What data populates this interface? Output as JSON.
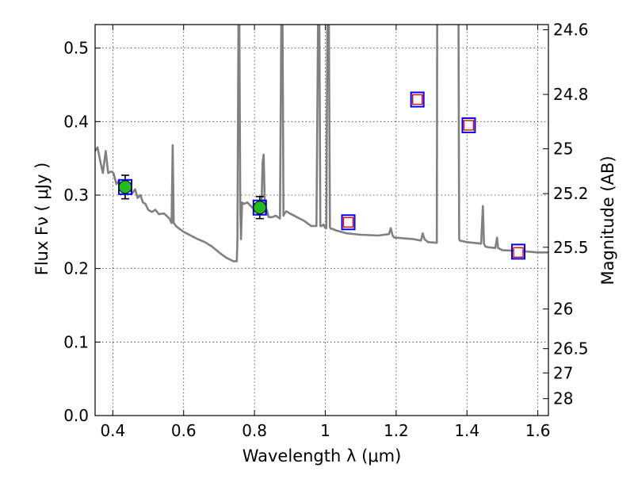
{
  "chart_data": {
    "type": "line",
    "xlabel": "Wavelength  λ (μm)",
    "ylabel": "Flux  Fν  ( μJy )",
    "y2label": "Magnitude (AB)",
    "xlim": [
      0.35,
      1.63
    ],
    "ylim": [
      0.0,
      0.532
    ],
    "x_ticks": [
      0.4,
      0.6,
      0.8,
      1.0,
      1.2,
      1.4,
      1.6
    ],
    "x_tick_labels": [
      "0.4",
      "0.6",
      "0.8",
      "1",
      "1.2",
      "1.4",
      "1.6"
    ],
    "y_ticks": [
      0.0,
      0.1,
      0.2,
      0.3,
      0.4,
      0.5
    ],
    "y_tick_labels": [
      "0.0",
      "0.1",
      "0.2",
      "0.3",
      "0.4",
      "0.5"
    ],
    "magnitude_ticks": [
      {
        "label": "24.6",
        "flux": 0.525
      },
      {
        "label": "24.8",
        "flux": 0.437
      },
      {
        "label": "25",
        "flux": 0.363
      },
      {
        "label": "25.2",
        "flux": 0.302
      },
      {
        "label": "25.5",
        "flux": 0.229
      },
      {
        "label": "26",
        "flux": 0.145
      },
      {
        "label": "26.5",
        "flux": 0.091
      },
      {
        "label": "27",
        "flux": 0.058
      },
      {
        "label": "28",
        "flux": 0.023
      }
    ],
    "grid": true,
    "colors": {
      "model": "#808080",
      "detection_fill": "#22bb22",
      "model_box": "#0000ee",
      "upper_limit_box": "#ee0000",
      "errorbar": "#000000"
    },
    "series": [
      {
        "type": "line",
        "role": "model spectrum",
        "x": [
          0.35,
          0.357,
          0.365,
          0.372,
          0.38,
          0.387,
          0.395,
          0.402,
          0.41,
          0.418,
          0.425,
          0.432,
          0.44,
          0.447,
          0.455,
          0.463,
          0.47,
          0.478,
          0.485,
          0.492,
          0.5,
          0.51,
          0.52,
          0.53,
          0.545,
          0.56,
          0.566,
          0.569,
          0.572,
          0.58,
          0.6,
          0.62,
          0.64,
          0.66,
          0.68,
          0.7,
          0.72,
          0.74,
          0.75,
          0.752,
          0.755,
          0.757,
          0.76,
          0.762,
          0.765,
          0.77,
          0.78,
          0.79,
          0.8,
          0.81,
          0.815,
          0.82,
          0.823,
          0.826,
          0.829,
          0.832,
          0.835,
          0.84,
          0.85,
          0.86,
          0.872,
          0.876,
          0.879,
          0.882,
          0.885,
          0.89,
          0.9,
          0.92,
          0.94,
          0.96,
          0.975,
          0.98,
          0.983,
          0.986,
          0.99,
          0.995,
          1.0,
          1.003,
          1.006,
          1.01,
          1.013,
          1.016,
          1.02,
          1.03,
          1.06,
          1.1,
          1.15,
          1.18,
          1.185,
          1.19,
          1.195,
          1.2,
          1.25,
          1.27,
          1.275,
          1.28,
          1.285,
          1.29,
          1.315,
          1.316,
          1.318,
          1.32,
          1.34,
          1.36,
          1.375,
          1.376,
          1.378,
          1.38,
          1.4,
          1.44,
          1.445,
          1.448,
          1.452,
          1.46,
          1.48,
          1.485,
          1.488,
          1.492,
          1.5,
          1.55,
          1.6,
          1.63
        ],
        "y": [
          0.36,
          0.365,
          0.345,
          0.33,
          0.36,
          0.33,
          0.332,
          0.33,
          0.315,
          0.32,
          0.305,
          0.318,
          0.31,
          0.31,
          0.302,
          0.308,
          0.296,
          0.3,
          0.29,
          0.288,
          0.28,
          0.277,
          0.28,
          0.274,
          0.275,
          0.268,
          0.262,
          0.368,
          0.262,
          0.257,
          0.25,
          0.245,
          0.24,
          0.236,
          0.23,
          0.222,
          0.215,
          0.21,
          0.21,
          0.24,
          0.56,
          0.56,
          0.28,
          0.24,
          0.29,
          0.288,
          0.29,
          0.285,
          0.28,
          0.285,
          0.29,
          0.285,
          0.345,
          0.355,
          0.29,
          0.275,
          0.28,
          0.27,
          0.27,
          0.272,
          0.268,
          0.56,
          0.56,
          0.272,
          0.275,
          0.278,
          0.275,
          0.27,
          0.265,
          0.258,
          0.258,
          0.56,
          0.56,
          0.258,
          0.258,
          0.26,
          0.255,
          0.255,
          0.56,
          0.56,
          0.256,
          0.254,
          0.254,
          0.252,
          0.248,
          0.246,
          0.245,
          0.247,
          0.255,
          0.245,
          0.242,
          0.242,
          0.24,
          0.238,
          0.248,
          0.24,
          0.238,
          0.236,
          0.235,
          0.56,
          0.56,
          0.56,
          0.56,
          0.56,
          0.56,
          0.56,
          0.24,
          0.238,
          0.236,
          0.234,
          0.285,
          0.234,
          0.23,
          0.229,
          0.228,
          0.242,
          0.228,
          0.227,
          0.225,
          0.224,
          0.222,
          0.222
        ]
      },
      {
        "type": "scatter",
        "role": "detections",
        "marker": "circle",
        "x": [
          0.435,
          0.815
        ],
        "y": [
          0.311,
          0.283
        ],
        "yerr": [
          0.016,
          0.015
        ]
      },
      {
        "type": "scatter",
        "role": "model band flux",
        "marker": "square",
        "x": [
          0.435,
          0.815,
          1.065,
          1.26,
          1.405,
          1.545
        ],
        "y": [
          0.311,
          0.283,
          0.263,
          0.43,
          0.395,
          0.223
        ]
      },
      {
        "type": "scatter",
        "role": "upper limits",
        "marker": "square",
        "x": [
          1.065,
          1.26,
          1.405,
          1.545
        ],
        "y": [
          0.263,
          0.43,
          0.395,
          0.222
        ]
      }
    ]
  }
}
